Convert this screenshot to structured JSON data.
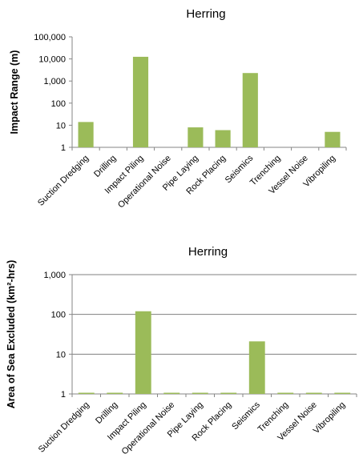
{
  "chart_data": [
    {
      "type": "bar",
      "title": "Herring",
      "xlabel": "",
      "ylabel": "Impact Range (m)",
      "yscale": "log",
      "ylim": [
        1,
        100000
      ],
      "yticks": [
        1,
        10,
        100,
        1000,
        10000,
        100000
      ],
      "ytick_labels": [
        "1",
        "10",
        "100",
        "1,000",
        "10,000",
        "100,000"
      ],
      "grid": false,
      "bar_color": "#9bbb59",
      "categories": [
        "Suction Dredging",
        "Drilling",
        "Impact Piling",
        "Operational Noise",
        "Pipe Laying",
        "Rock Placing",
        "Seismics",
        "Trenching",
        "Vessel Noise",
        "Vibropiling"
      ],
      "values": [
        14,
        null,
        12500,
        null,
        8,
        6,
        2300,
        null,
        null,
        5
      ]
    },
    {
      "type": "bar",
      "title": "Herring",
      "xlabel": "",
      "ylabel": "Area of Sea Excluded (km²-hrs)",
      "yscale": "log",
      "ylim": [
        1,
        1000
      ],
      "yticks": [
        1,
        10,
        100,
        1000
      ],
      "ytick_labels": [
        "1",
        "10",
        "100",
        "1,000"
      ],
      "grid": true,
      "bar_color": "#9bbb59",
      "categories": [
        "Suction Dredging",
        "Drilling",
        "Impact Piling",
        "Operational Noise",
        "Pipe Laying",
        "Rock Placing",
        "Seismics",
        "Trenching",
        "Vessel Noise",
        "Vibropiling"
      ],
      "values": [
        1,
        1,
        120,
        1,
        1,
        1,
        21,
        1,
        1,
        1
      ]
    }
  ]
}
